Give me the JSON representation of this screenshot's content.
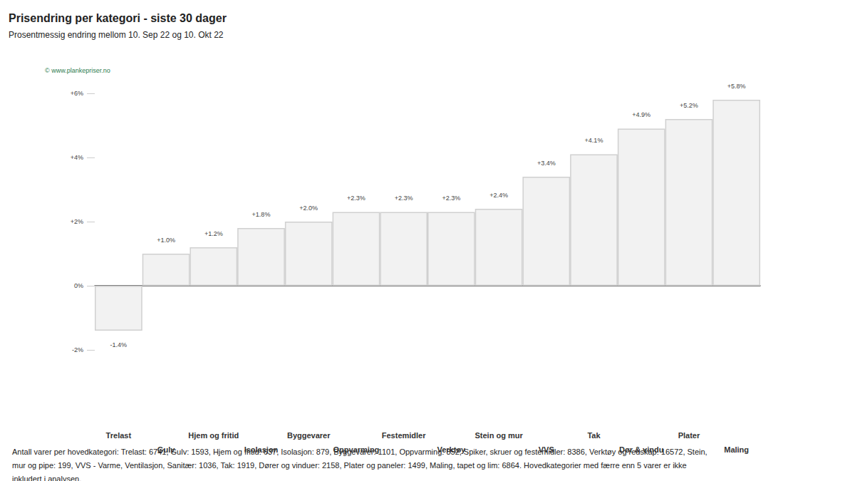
{
  "chart_data": {
    "type": "bar",
    "title": "Prisendring per kategori - siste 30 dager",
    "subtitle": "Prosentmessig endring mellom 10. Sep 22 og 10. Okt 22",
    "source": "© www.plankepriser.no",
    "footnote": "Antall varer per hovedkategori: Trelast: 6741, Gulv: 1593, Hjem og fritid: 637, Isolasjon: 879, Byggevarer: 1101, Oppvarming: 852, Spiker, skruer og festemidler: 8386, Verktøy og redskap: 16572, Stein, mur og pipe: 199, VVS - Varme, Ventilasjon, Sanitær: 1036, Tak: 1919, Dører og vinduer: 2158, Plater og paneler: 1499, Maling, tapet og lim: 6864. Hovedkategorier med færre enn 5 varer er ikke inkludert i analysen.",
    "categories": [
      "Trelast",
      "Gulv",
      "Hjem og fritid",
      "Isolasjon",
      "Byggevarer",
      "Oppvarming",
      "Festemidler",
      "Verktøy",
      "Stein og mur",
      "VVS",
      "Tak",
      "Dør & vindu",
      "Plater",
      "Maling"
    ],
    "values": [
      -1.4,
      1.0,
      1.2,
      1.8,
      2.0,
      2.3,
      2.3,
      2.3,
      2.4,
      3.4,
      4.1,
      4.9,
      5.2,
      5.8
    ],
    "value_labels": [
      "-1.4%",
      "+1.0%",
      "+1.2%",
      "+1.8%",
      "+2.0%",
      "+2.3%",
      "+2.3%",
      "+2.3%",
      "+2.4%",
      "+3.4%",
      "+4.1%",
      "+4.9%",
      "+5.2%",
      "+5.8%"
    ],
    "color": "#f2f2f2",
    "ylim": [
      -2,
      6
    ],
    "yticks": [
      {
        "value": -2,
        "label": "-2%"
      },
      {
        "value": 0,
        "label": "0%"
      },
      {
        "value": 2,
        "label": "+2%"
      },
      {
        "value": 4,
        "label": "+4%"
      },
      {
        "value": 6,
        "label": "+6%"
      }
    ],
    "grid": false,
    "data_labels": true
  }
}
